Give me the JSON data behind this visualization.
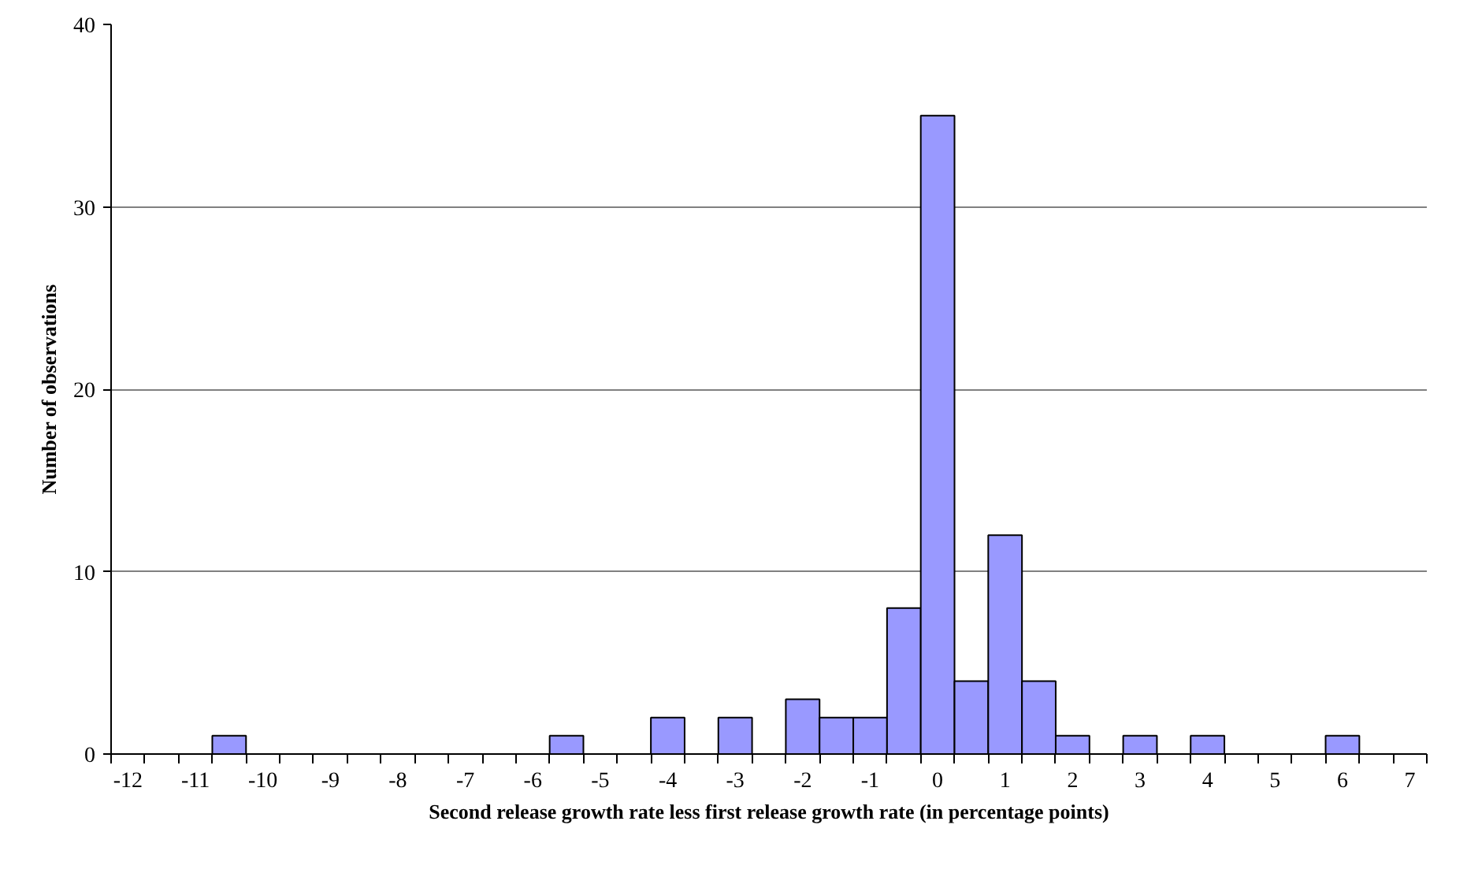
{
  "chart_data": {
    "type": "bar",
    "xlabel": "Second release growth rate less first release growth rate (in percentage points)",
    "ylabel": "Number of observations",
    "categories": [
      "-12",
      null,
      "-11",
      null,
      "-10",
      null,
      "-9",
      null,
      "-8",
      null,
      "-7",
      null,
      "-6",
      null,
      "-5",
      null,
      "-4",
      null,
      "-3",
      null,
      "-2",
      null,
      "-1",
      null,
      "0",
      null,
      "1",
      null,
      "2",
      null,
      "3",
      null,
      "4",
      null,
      "5",
      null,
      "6",
      null,
      "7"
    ],
    "values": [
      0,
      0,
      0,
      1,
      0,
      0,
      0,
      0,
      0,
      0,
      0,
      0,
      0,
      1,
      0,
      0,
      2,
      0,
      2,
      0,
      3,
      2,
      2,
      8,
      35,
      4,
      12,
      4,
      1,
      0,
      1,
      0,
      1,
      0,
      0,
      0,
      1,
      0,
      0
    ],
    "color": "#9999ff",
    "ylim": [
      0,
      40
    ],
    "yticks": [
      0,
      10,
      20,
      30,
      40
    ],
    "grid": "y"
  }
}
